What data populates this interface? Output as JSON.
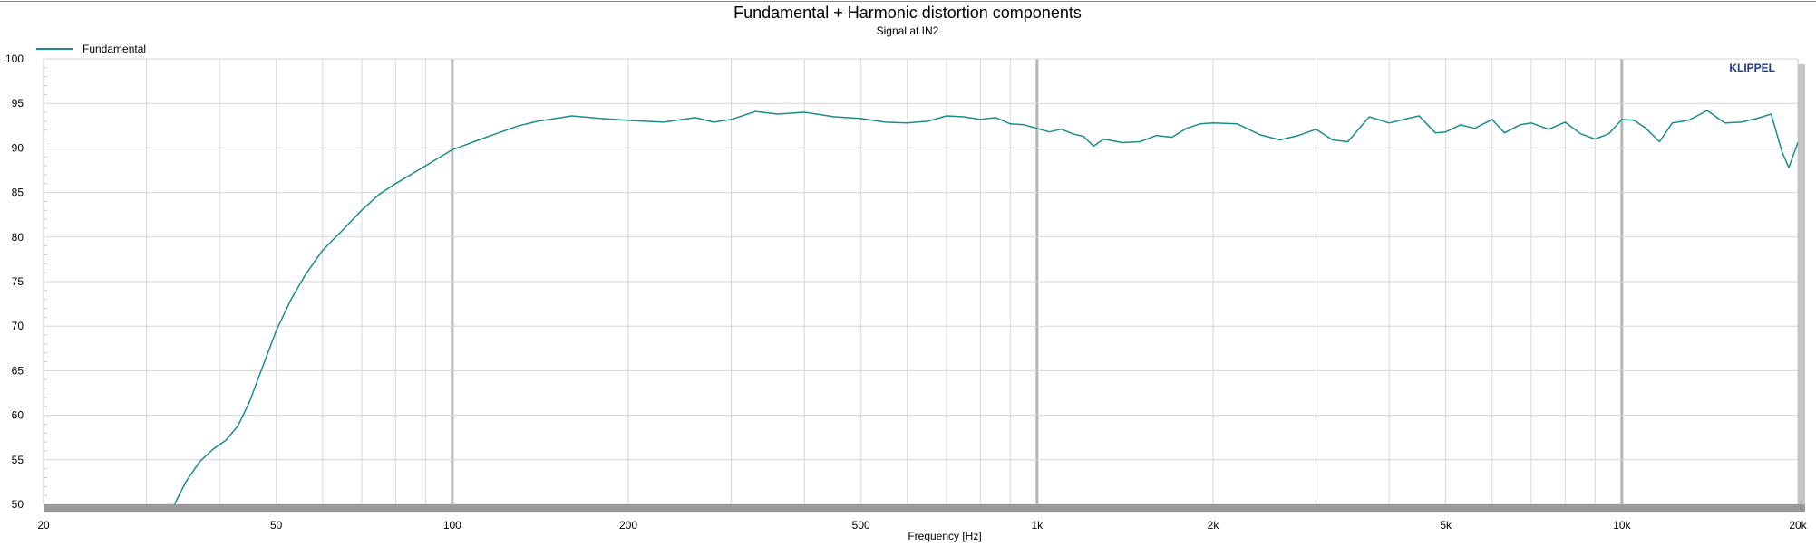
{
  "chart_data": {
    "type": "line",
    "title": "Fundamental + Harmonic distortion components",
    "subtitle": "Signal at IN2",
    "xlabel": "Frequency [Hz]",
    "ylabel": "",
    "xscale": "log",
    "xlim": [
      20,
      20000
    ],
    "ylim": [
      50,
      100
    ],
    "grid": true,
    "legend_position": "top-left",
    "brand_label": "KLIPPEL",
    "x_ticks": [
      {
        "value": 20,
        "label": "20"
      },
      {
        "value": 50,
        "label": "50"
      },
      {
        "value": 100,
        "label": "100"
      },
      {
        "value": 200,
        "label": "200"
      },
      {
        "value": 500,
        "label": "500"
      },
      {
        "value": 1000,
        "label": "1k"
      },
      {
        "value": 2000,
        "label": "2k"
      },
      {
        "value": 5000,
        "label": "5k"
      },
      {
        "value": 10000,
        "label": "10k"
      },
      {
        "value": 20000,
        "label": "20k"
      }
    ],
    "y_ticks": [
      {
        "value": 50,
        "label": "50"
      },
      {
        "value": 55,
        "label": "55"
      },
      {
        "value": 60,
        "label": "60"
      },
      {
        "value": 65,
        "label": "65"
      },
      {
        "value": 70,
        "label": "70"
      },
      {
        "value": 75,
        "label": "75"
      },
      {
        "value": 80,
        "label": "80"
      },
      {
        "value": 85,
        "label": "85"
      },
      {
        "value": 90,
        "label": "90"
      },
      {
        "value": 95,
        "label": "95"
      },
      {
        "value": 100,
        "label": "100"
      }
    ],
    "series": [
      {
        "name": "Fundamental",
        "color": "#1a8c8c",
        "x": [
          33.5,
          35,
          37,
          39,
          41,
          43,
          45,
          47,
          50,
          53,
          56,
          60,
          65,
          70,
          75,
          80,
          90,
          100,
          110,
          120,
          130,
          140,
          150,
          160,
          180,
          200,
          230,
          260,
          280,
          300,
          330,
          360,
          400,
          450,
          500,
          550,
          600,
          650,
          700,
          750,
          800,
          850,
          900,
          950,
          1000,
          1050,
          1100,
          1150,
          1200,
          1250,
          1300,
          1400,
          1500,
          1600,
          1700,
          1800,
          1900,
          2000,
          2200,
          2400,
          2600,
          2800,
          3000,
          3200,
          3400,
          3700,
          4000,
          4300,
          4500,
          4800,
          5000,
          5300,
          5600,
          6000,
          6300,
          6700,
          7000,
          7500,
          8000,
          8500,
          9000,
          9500,
          10000,
          10500,
          11000,
          11600,
          12200,
          13000,
          14000,
          15000,
          16000,
          17000,
          18000,
          18800,
          19300,
          20000
        ],
        "values": [
          50,
          52.5,
          54.8,
          56.2,
          57.2,
          58.8,
          61.5,
          64.8,
          69.5,
          73,
          75.7,
          78.5,
          80.8,
          83,
          84.8,
          86,
          88,
          89.8,
          90.8,
          91.7,
          92.5,
          93,
          93.3,
          93.6,
          93.3,
          93.1,
          92.9,
          93.4,
          92.9,
          93.2,
          94.1,
          93.8,
          94,
          93.5,
          93.3,
          92.9,
          92.8,
          93.0,
          93.6,
          93.5,
          93.2,
          93.4,
          92.7,
          92.6,
          92.2,
          91.8,
          92.1,
          91.6,
          91.3,
          90.2,
          91.0,
          90.6,
          90.7,
          91.4,
          91.2,
          92.2,
          92.7,
          92.8,
          92.7,
          91.5,
          90.9,
          91.4,
          92.1,
          90.9,
          90.7,
          93.5,
          92.8,
          93.3,
          93.6,
          91.7,
          91.8,
          92.6,
          92.2,
          93.2,
          91.7,
          92.6,
          92.8,
          92.1,
          92.9,
          91.6,
          91.0,
          91.6,
          93.2,
          93.1,
          92.2,
          90.7,
          92.8,
          93.1,
          94.2,
          92.8,
          92.9,
          93.3,
          93.8,
          89.5,
          87.8,
          90.6
        ]
      }
    ]
  }
}
